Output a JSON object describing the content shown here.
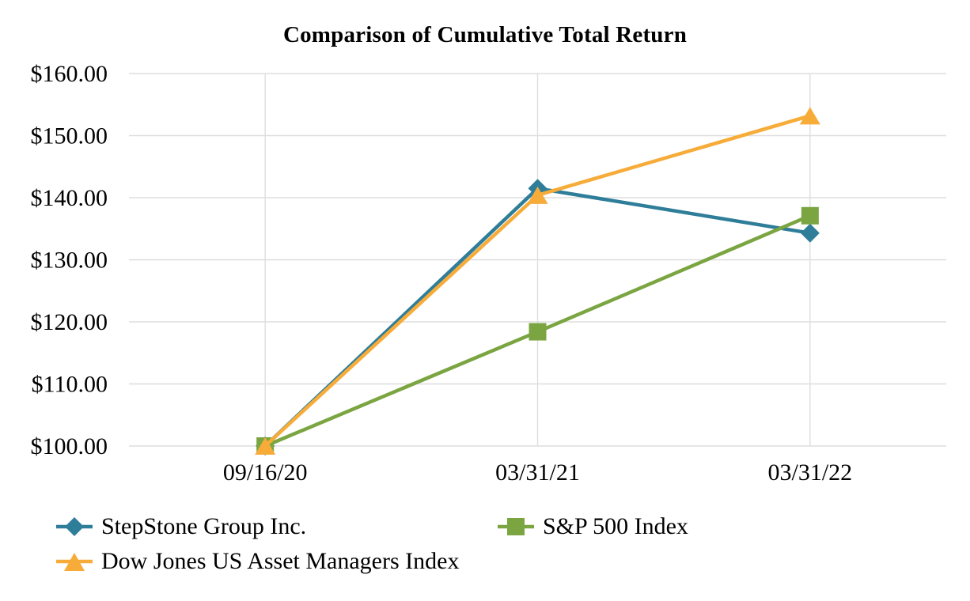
{
  "title": "Comparison of Cumulative Total Return",
  "chart_data": {
    "type": "line",
    "title": "Comparison of Cumulative Total Return",
    "categories": [
      "09/16/20",
      "03/31/21",
      "03/31/22"
    ],
    "series": [
      {
        "name": "StepStone Group Inc.",
        "values": [
          100.0,
          141.5,
          134.3
        ],
        "color": "#2E7D99",
        "marker": "diamond"
      },
      {
        "name": "S&P 500 Index",
        "values": [
          100.0,
          118.4,
          137.1
        ],
        "color": "#7AA541",
        "marker": "square"
      },
      {
        "name": "Dow Jones US Asset Managers Index",
        "values": [
          100.0,
          140.4,
          153.2
        ],
        "color": "#F7AC3A",
        "marker": "triangle"
      }
    ],
    "ylim": [
      100,
      160
    ],
    "yticks": [
      100,
      110,
      120,
      130,
      140,
      150,
      160
    ],
    "ytick_labels": [
      "$100.00",
      "$110.00",
      "$120.00",
      "$130.00",
      "$140.00",
      "$150.00",
      "$160.00"
    ],
    "xlabel": "",
    "ylabel": "",
    "grid": true,
    "gridline_color": "#DEDEDE",
    "legend_position": "bottom-left, two columns"
  }
}
